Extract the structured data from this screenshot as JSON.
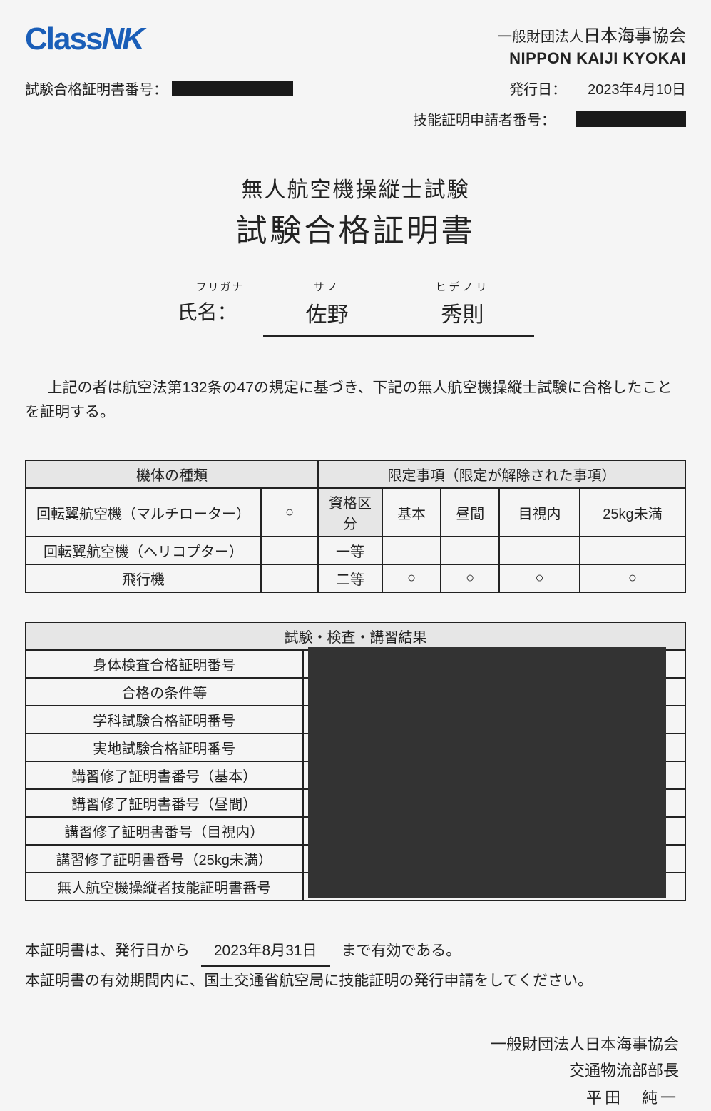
{
  "logo": {
    "part1": "Class",
    "part2": "NK"
  },
  "org": {
    "jp_prefix": "一般財団法人",
    "jp_name": "日本海事協会",
    "en": "NIPPON KAIJI KYOKAI"
  },
  "meta": {
    "cert_no_label": "試験合格証明書番号：",
    "issue_date_label": "発行日：",
    "issue_date": "2023年4月10日",
    "applicant_no_label": "技能証明申請者番号："
  },
  "title": {
    "sub": "無人航空機操縦士試験",
    "main": "試験合格証明書"
  },
  "name": {
    "furi_label": "フリガナ",
    "furi_last": "サノ",
    "furi_first": "ヒデノリ",
    "label": "氏名：",
    "last": "佐野",
    "first": "秀則"
  },
  "cert_text": "上記の者は航空法第132条の47の規定に基づき、下記の無人航空機操縦士試験に合格したことを証明する。",
  "table1": {
    "h_type": "機体の種類",
    "h_limit": "限定事項（限定が解除された事項）",
    "kubun": "資格区分",
    "cols": [
      "基本",
      "昼間",
      "目視内",
      "25kg未満"
    ],
    "rows": [
      {
        "type": "回転翼航空機（マルチローター）",
        "mark": "○",
        "grade": ""
      },
      {
        "type": "回転翼航空機（ヘリコプター）",
        "mark": "",
        "grade": "一等"
      },
      {
        "type": "飛行機",
        "mark": "",
        "grade": "二等",
        "checks": [
          "○",
          "○",
          "○",
          "○"
        ]
      }
    ]
  },
  "table2": {
    "header": "試験・検査・講習結果",
    "rows": [
      "身体検査合格証明番号",
      "合格の条件等",
      "学科試験合格証明番号",
      "実地試験合格証明番号",
      "講習修了証明書番号（基本）",
      "講習修了証明書番号（昼間）",
      "講習修了証明書番号（目視内）",
      "講習修了証明書番号（25kg未満）",
      "無人航空機操縦者技能証明書番号"
    ]
  },
  "validity": {
    "line1_a": "本証明書は、発行日から",
    "date": "2023年8月31日",
    "line1_b": "まで有効である。",
    "line2": "本証明書の有効期間内に、国土交通省航空局に技能証明の発行申請をしてください。"
  },
  "issuer": {
    "org": "一般財団法人日本海事協会",
    "dept": "交通物流部部長",
    "name": "平田　純一"
  }
}
